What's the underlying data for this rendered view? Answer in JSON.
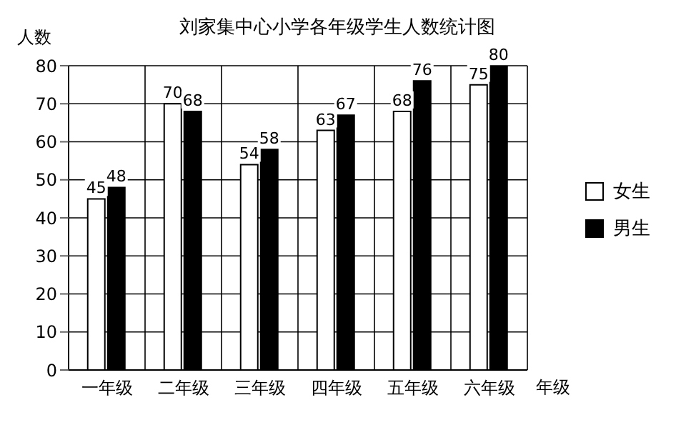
{
  "chart_data": {
    "type": "bar",
    "title": "刘家集中心小学各年级学生人数统计图",
    "xlabel": "年级",
    "ylabel": "人数",
    "categories": [
      "一年级",
      "二年级",
      "三年级",
      "四年级",
      "五年级",
      "六年级"
    ],
    "series": [
      {
        "name": "女生",
        "color": "#ffffff",
        "values": [
          45,
          70,
          54,
          63,
          68,
          75
        ]
      },
      {
        "name": "男生",
        "color": "#000000",
        "values": [
          48,
          68,
          58,
          67,
          76,
          80
        ]
      }
    ],
    "ylim": [
      0,
      80
    ],
    "yticks": [
      0,
      10,
      20,
      30,
      40,
      50,
      60,
      70,
      80
    ],
    "grid": true,
    "legend": "right",
    "data_labels": true
  }
}
